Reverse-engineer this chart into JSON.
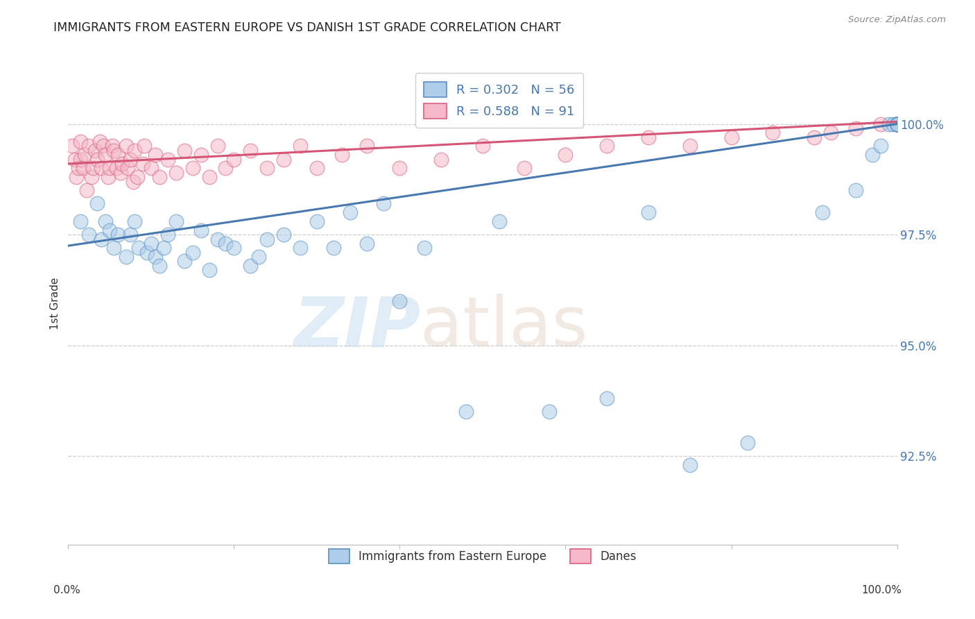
{
  "title": "IMMIGRANTS FROM EASTERN EUROPE VS DANISH 1ST GRADE CORRELATION CHART",
  "source": "Source: ZipAtlas.com",
  "ylabel": "1st Grade",
  "x_range": [
    0.0,
    100.0
  ],
  "y_range": [
    90.5,
    101.4
  ],
  "legend_label_blue": "R = 0.302   N = 56",
  "legend_label_pink": "R = 0.588   N = 91",
  "legend_label_blue_bottom": "Immigrants from Eastern Europe",
  "legend_label_pink_bottom": "Danes",
  "blue_color": "#aecde8",
  "blue_edge_color": "#5b8fc4",
  "blue_line_color": "#4878b0",
  "pink_color": "#f5b8c8",
  "pink_edge_color": "#d96080",
  "pink_line_color": "#d45575",
  "blue_trend_x": [
    0,
    100
  ],
  "blue_trend_y": [
    97.25,
    100.0
  ],
  "pink_trend_x": [
    0,
    100
  ],
  "pink_trend_y": [
    99.1,
    100.05
  ],
  "blue_points_x": [
    1.5,
    2.5,
    3.5,
    4.0,
    4.5,
    5.0,
    5.5,
    6.0,
    7.0,
    7.5,
    8.0,
    8.5,
    9.5,
    10.0,
    10.5,
    11.0,
    11.5,
    12.0,
    13.0,
    14.0,
    15.0,
    16.0,
    17.0,
    18.0,
    19.0,
    20.0,
    22.0,
    23.0,
    24.0,
    26.0,
    28.0,
    30.0,
    32.0,
    34.0,
    36.0,
    38.0,
    40.0,
    43.0,
    48.0,
    52.0,
    58.0,
    65.0,
    70.0,
    75.0,
    82.0,
    91.0,
    95.0,
    97.0,
    98.0,
    99.0,
    99.5,
    100.0,
    100.0,
    100.0,
    100.0,
    100.0
  ],
  "blue_points_y": [
    97.8,
    97.5,
    98.2,
    97.4,
    97.8,
    97.6,
    97.2,
    97.5,
    97.0,
    97.5,
    97.8,
    97.2,
    97.1,
    97.3,
    97.0,
    96.8,
    97.2,
    97.5,
    97.8,
    96.9,
    97.1,
    97.6,
    96.7,
    97.4,
    97.3,
    97.2,
    96.8,
    97.0,
    97.4,
    97.5,
    97.2,
    97.8,
    97.2,
    98.0,
    97.3,
    98.2,
    96.0,
    97.2,
    93.5,
    97.8,
    93.5,
    93.8,
    98.0,
    92.3,
    92.8,
    98.0,
    98.5,
    99.3,
    99.5,
    100.0,
    100.0,
    100.0,
    100.0,
    100.0,
    100.0,
    100.0
  ],
  "pink_points_x": [
    0.5,
    0.8,
    1.0,
    1.2,
    1.5,
    1.5,
    1.8,
    2.0,
    2.2,
    2.5,
    2.8,
    3.0,
    3.2,
    3.5,
    3.8,
    4.0,
    4.2,
    4.5,
    4.8,
    5.0,
    5.3,
    5.5,
    5.8,
    6.0,
    6.3,
    6.5,
    7.0,
    7.2,
    7.5,
    7.8,
    8.0,
    8.3,
    9.0,
    9.2,
    10.0,
    10.5,
    11.0,
    12.0,
    13.0,
    14.0,
    15.0,
    16.0,
    17.0,
    18.0,
    19.0,
    20.0,
    22.0,
    24.0,
    26.0,
    28.0,
    30.0,
    33.0,
    36.0,
    40.0,
    45.0,
    50.0,
    55.0,
    60.0,
    65.0,
    70.0,
    75.0,
    80.0,
    85.0,
    90.0,
    92.0,
    95.0,
    98.0,
    100.0,
    100.0,
    100.0,
    100.0,
    100.0,
    100.0,
    100.0,
    100.0,
    100.0,
    100.0,
    100.0,
    100.0,
    100.0,
    100.0,
    100.0,
    100.0,
    100.0,
    100.0,
    100.0,
    100.0,
    100.0,
    100.0,
    100.0,
    100.0
  ],
  "pink_points_y": [
    99.5,
    99.2,
    98.8,
    99.0,
    99.6,
    99.2,
    99.0,
    99.3,
    98.5,
    99.5,
    98.8,
    99.0,
    99.4,
    99.2,
    99.6,
    99.0,
    99.5,
    99.3,
    98.8,
    99.0,
    99.5,
    99.4,
    99.0,
    99.3,
    98.9,
    99.1,
    99.5,
    99.0,
    99.2,
    98.7,
    99.4,
    98.8,
    99.1,
    99.5,
    99.0,
    99.3,
    98.8,
    99.2,
    98.9,
    99.4,
    99.0,
    99.3,
    98.8,
    99.5,
    99.0,
    99.2,
    99.4,
    99.0,
    99.2,
    99.5,
    99.0,
    99.3,
    99.5,
    99.0,
    99.2,
    99.5,
    99.0,
    99.3,
    99.5,
    99.7,
    99.5,
    99.7,
    99.8,
    99.7,
    99.8,
    99.9,
    100.0,
    100.0,
    100.0,
    100.0,
    100.0,
    100.0,
    100.0,
    100.0,
    100.0,
    100.0,
    100.0,
    100.0,
    100.0,
    100.0,
    100.0,
    100.0,
    100.0,
    100.0,
    100.0,
    100.0,
    100.0,
    100.0,
    100.0,
    100.0,
    100.0
  ],
  "y_ticks": [
    92.5,
    95.0,
    97.5,
    100.0
  ],
  "y_tick_labels": [
    "92.5%",
    "95.0%",
    "97.5%",
    "100.0%"
  ],
  "background_color": "#ffffff",
  "grid_color": "#cccccc"
}
